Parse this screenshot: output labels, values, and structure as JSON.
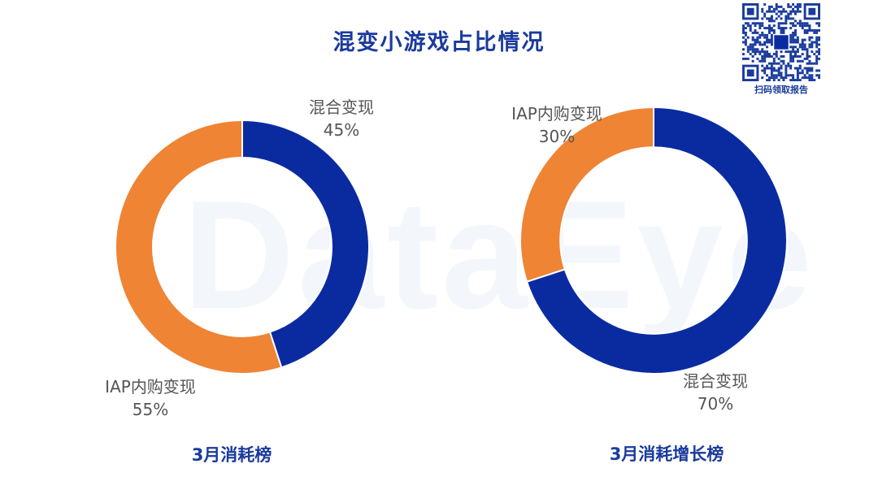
{
  "page": {
    "title": "混变小游戏占比情况",
    "watermark": "DataEye",
    "qr_caption": "扫码领取报告"
  },
  "colors": {
    "blue": "#0a2ba0",
    "orange": "#ee8434",
    "title": "#1a3a9c"
  },
  "chart_data": [
    {
      "type": "pie",
      "caption": "3月消耗榜",
      "slices": [
        {
          "label": "混合变现",
          "value": 45,
          "display": "45%",
          "color": "#0a2ba0"
        },
        {
          "label": "IAP内购变现",
          "value": 55,
          "display": "55%",
          "color": "#ee8434"
        }
      ]
    },
    {
      "type": "pie",
      "caption": "3月消耗增长榜",
      "slices": [
        {
          "label": "混合变现",
          "value": 70,
          "display": "70%",
          "color": "#0a2ba0"
        },
        {
          "label": "IAP内购变现",
          "value": 30,
          "display": "30%",
          "color": "#ee8434"
        }
      ]
    }
  ]
}
